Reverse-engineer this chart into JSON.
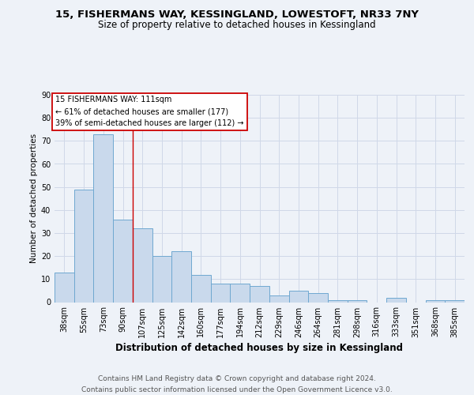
{
  "title_line1": "15, FISHERMANS WAY, KESSINGLAND, LOWESTOFT, NR33 7NY",
  "title_line2": "Size of property relative to detached houses in Kessingland",
  "xlabel": "Distribution of detached houses by size in Kessingland",
  "ylabel": "Number of detached properties",
  "categories": [
    "38sqm",
    "55sqm",
    "73sqm",
    "90sqm",
    "107sqm",
    "125sqm",
    "142sqm",
    "160sqm",
    "177sqm",
    "194sqm",
    "212sqm",
    "229sqm",
    "246sqm",
    "264sqm",
    "281sqm",
    "298sqm",
    "316sqm",
    "333sqm",
    "351sqm",
    "368sqm",
    "385sqm"
  ],
  "values": [
    13,
    49,
    73,
    36,
    32,
    20,
    22,
    12,
    8,
    8,
    7,
    3,
    5,
    4,
    1,
    1,
    0,
    2,
    0,
    1,
    1
  ],
  "bar_color": "#c9d9ec",
  "bar_edge_color": "#6fa8d0",
  "grid_color": "#d0d8e8",
  "vline_x": 3.5,
  "vline_color": "#cc0000",
  "annotation_text": "15 FISHERMANS WAY: 111sqm\n← 61% of detached houses are smaller (177)\n39% of semi-detached houses are larger (112) →",
  "annotation_box_color": "#ffffff",
  "annotation_box_edge": "#cc0000",
  "ylim": [
    0,
    90
  ],
  "yticks": [
    0,
    10,
    20,
    30,
    40,
    50,
    60,
    70,
    80,
    90
  ],
  "footnote": "Contains HM Land Registry data © Crown copyright and database right 2024.\nContains public sector information licensed under the Open Government Licence v3.0.",
  "background_color": "#eef2f8",
  "title_fontsize": 9.5,
  "subtitle_fontsize": 8.5,
  "ylabel_fontsize": 7.5,
  "xlabel_fontsize": 8.5,
  "tick_fontsize": 7,
  "annotation_fontsize": 7,
  "footnote_fontsize": 6.5
}
